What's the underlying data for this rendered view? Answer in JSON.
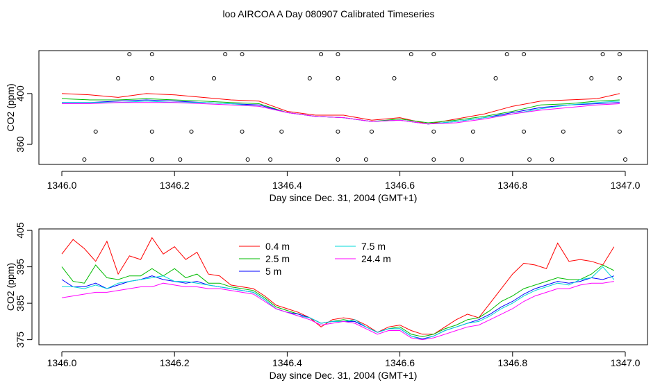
{
  "page_title": "loo AIRCOA A  Day 080907  Calibrated Timeseries",
  "chart_data": [
    {
      "type": "line",
      "xlabel": "Day since Dec. 31, 2004 (GMT+1)",
      "ylabel": "CO2 (ppm)",
      "xlim": [
        1346.0,
        1347.0
      ],
      "ylim": [
        344.2,
        433.8
      ],
      "xticks": [
        "1346.0",
        "1346.2",
        "1346.4",
        "1346.6",
        "1346.8",
        "1347.0"
      ],
      "yticks": [
        "360",
        "400"
      ],
      "ytick_values": [
        360,
        400
      ],
      "grid": false,
      "x": [
        1346.0,
        1346.05,
        1346.1,
        1346.15,
        1346.2,
        1346.25,
        1346.3,
        1346.35,
        1346.4,
        1346.45,
        1346.5,
        1346.55,
        1346.6,
        1346.65,
        1346.7,
        1346.75,
        1346.8,
        1346.85,
        1346.9,
        1346.95,
        1346.99
      ],
      "series": [
        {
          "name": "0.4 m",
          "color": "#ff0000",
          "values": [
            400,
            399,
            397,
            400,
            399,
            397,
            395,
            394,
            386,
            383,
            383,
            379,
            381,
            376,
            380,
            384,
            390,
            394,
            395,
            396,
            400
          ]
        },
        {
          "name": "2.5 m",
          "color": "#00bb00",
          "values": [
            396,
            395,
            395,
            396,
            395,
            394,
            393,
            392,
            385,
            382,
            381,
            378,
            380,
            377,
            379,
            382,
            386,
            391,
            392,
            394,
            395
          ]
        },
        {
          "name": "5 m",
          "color": "#0000ff",
          "values": [
            393,
            393,
            394,
            395,
            394,
            393,
            392,
            391,
            385,
            382,
            381,
            378,
            379,
            376,
            378,
            381,
            385,
            389,
            391,
            392,
            393
          ]
        },
        {
          "name": "7.5 m",
          "color": "#00d8d8",
          "values": [
            393,
            393,
            393,
            394,
            393,
            393,
            392,
            390,
            385,
            382,
            381,
            378,
            379,
            376,
            378,
            381,
            384,
            388,
            391,
            393,
            394
          ]
        },
        {
          "name": "24.4 m",
          "color": "#ff00ff",
          "values": [
            392,
            392,
            393,
            393,
            393,
            392,
            391,
            390,
            385,
            382,
            381,
            378,
            379,
            376,
            377,
            380,
            384,
            387,
            389,
            391,
            392
          ]
        }
      ],
      "markers": {
        "style": "open-circle",
        "x": [
          1346.04,
          1346.06,
          1346.1,
          1346.12,
          1346.16,
          1346.16,
          1346.16,
          1346.16,
          1346.21,
          1346.23,
          1346.27,
          1346.29,
          1346.32,
          1346.32,
          1346.33,
          1346.37,
          1346.39,
          1346.44,
          1346.46,
          1346.49,
          1346.49,
          1346.49,
          1346.49,
          1346.54,
          1346.55,
          1346.59,
          1346.62,
          1346.66,
          1346.66,
          1346.66,
          1346.71,
          1346.73,
          1346.77,
          1346.79,
          1346.82,
          1346.82,
          1346.83,
          1346.87,
          1346.89,
          1346.94,
          1346.96,
          1346.99,
          1346.99,
          1346.99,
          1347.0
        ],
        "y": [
          348,
          370,
          412,
          431,
          431,
          412,
          370,
          348,
          348,
          370,
          412,
          431,
          431,
          370,
          348,
          348,
          370,
          412,
          431,
          431,
          412,
          370,
          348,
          348,
          370,
          412,
          431,
          431,
          370,
          348,
          348,
          370,
          412,
          431,
          431,
          370,
          348,
          348,
          370,
          412,
          431,
          431,
          412,
          370,
          348
        ]
      }
    },
    {
      "type": "line",
      "xlabel": "Day since Dec. 31, 2004 (GMT+1)",
      "ylabel": "CO2 (ppm)",
      "xlim": [
        1346.0,
        1347.0
      ],
      "ylim": [
        373.6,
        405.4
      ],
      "xticks": [
        "1346.0",
        "1346.2",
        "1346.4",
        "1346.6",
        "1346.8",
        "1347.0"
      ],
      "yticks": [
        "375",
        "385",
        "395",
        "405"
      ],
      "ytick_values": [
        375,
        385,
        395,
        405
      ],
      "grid": false,
      "legend": {
        "position": "top-center",
        "columns": 2
      },
      "x": [
        1346.0,
        1346.02,
        1346.04,
        1346.06,
        1346.08,
        1346.1,
        1346.12,
        1346.14,
        1346.16,
        1346.18,
        1346.2,
        1346.22,
        1346.24,
        1346.26,
        1346.28,
        1346.3,
        1346.32,
        1346.34,
        1346.36,
        1346.38,
        1346.4,
        1346.42,
        1346.44,
        1346.46,
        1346.48,
        1346.5,
        1346.52,
        1346.54,
        1346.56,
        1346.58,
        1346.6,
        1346.62,
        1346.64,
        1346.66,
        1346.68,
        1346.7,
        1346.72,
        1346.74,
        1346.76,
        1346.78,
        1346.8,
        1346.82,
        1346.84,
        1346.86,
        1346.88,
        1346.9,
        1346.92,
        1346.94,
        1346.96,
        1346.98
      ],
      "series": [
        {
          "name": "0.4 m",
          "color": "#ff0000",
          "values": [
            398.5,
            402.5,
            400.0,
            396.5,
            402.0,
            393.0,
            398.0,
            397.0,
            403.0,
            398.5,
            400.5,
            397.0,
            399.0,
            393.0,
            392.5,
            390.0,
            389.5,
            389.0,
            387.0,
            384.5,
            383.5,
            382.5,
            381.0,
            378.5,
            380.5,
            381.0,
            380.5,
            379.0,
            377.0,
            378.5,
            379.0,
            377.5,
            376.5,
            376.5,
            378.5,
            380.5,
            382.0,
            381.0,
            385.0,
            389.0,
            393.0,
            396.0,
            395.5,
            394.5,
            401.5,
            396.5,
            397.0,
            396.5,
            395.5,
            400.5
          ]
        },
        {
          "name": "2.5 m",
          "color": "#00bb00",
          "values": [
            395.0,
            391.0,
            390.5,
            395.5,
            392.0,
            391.5,
            392.5,
            392.5,
            394.5,
            392.5,
            394.5,
            392.0,
            393.0,
            390.5,
            390.5,
            389.5,
            389.0,
            388.5,
            386.5,
            384.0,
            383.0,
            382.0,
            381.0,
            379.5,
            380.0,
            380.5,
            380.0,
            378.5,
            377.0,
            378.0,
            378.5,
            376.5,
            375.8,
            376.5,
            378.0,
            379.0,
            380.5,
            381.0,
            383.0,
            385.5,
            387.0,
            389.0,
            390.0,
            391.0,
            392.0,
            391.5,
            391.5,
            393.0,
            395.5,
            394.0
          ]
        },
        {
          "name": "5 m",
          "color": "#0000ff",
          "values": [
            391.5,
            389.5,
            389.5,
            390.5,
            389.0,
            390.0,
            391.0,
            391.5,
            392.5,
            391.5,
            391.0,
            390.5,
            391.0,
            390.0,
            389.5,
            389.0,
            388.5,
            388.0,
            386.0,
            383.5,
            382.5,
            382.0,
            381.0,
            379.5,
            380.0,
            380.0,
            380.0,
            378.5,
            377.0,
            378.0,
            378.0,
            376.0,
            375.2,
            376.0,
            377.5,
            378.5,
            379.5,
            380.5,
            382.0,
            384.0,
            385.5,
            387.5,
            389.0,
            390.0,
            391.0,
            390.5,
            391.0,
            392.0,
            391.5,
            392.5
          ]
        },
        {
          "name": "7.5 m",
          "color": "#00d8d8",
          "values": [
            389.5,
            389.5,
            389.0,
            390.0,
            389.0,
            390.5,
            391.0,
            391.5,
            392.0,
            392.5,
            391.0,
            391.0,
            390.5,
            390.0,
            389.5,
            389.0,
            388.5,
            388.0,
            386.0,
            383.5,
            382.5,
            381.5,
            381.0,
            379.5,
            380.0,
            380.0,
            380.5,
            378.5,
            377.0,
            378.0,
            378.0,
            376.0,
            375.0,
            376.0,
            377.5,
            378.5,
            379.5,
            380.0,
            381.5,
            383.5,
            385.0,
            387.0,
            388.5,
            389.5,
            390.5,
            390.0,
            391.5,
            392.0,
            395.0,
            391.5
          ]
        },
        {
          "name": "24.4 m",
          "color": "#ff00ff",
          "values": [
            386.5,
            387.0,
            387.5,
            388.0,
            388.0,
            388.5,
            389.0,
            389.5,
            389.5,
            390.5,
            390.0,
            389.5,
            389.5,
            389.0,
            389.0,
            388.5,
            388.0,
            387.5,
            385.5,
            383.5,
            382.5,
            381.5,
            380.5,
            379.0,
            379.5,
            380.0,
            379.5,
            378.0,
            376.5,
            377.5,
            377.5,
            375.5,
            375.0,
            375.5,
            376.5,
            377.5,
            378.5,
            379.0,
            380.5,
            382.0,
            383.5,
            385.5,
            387.0,
            388.0,
            389.0,
            389.0,
            390.0,
            390.5,
            390.5,
            391.0
          ]
        }
      ]
    }
  ]
}
